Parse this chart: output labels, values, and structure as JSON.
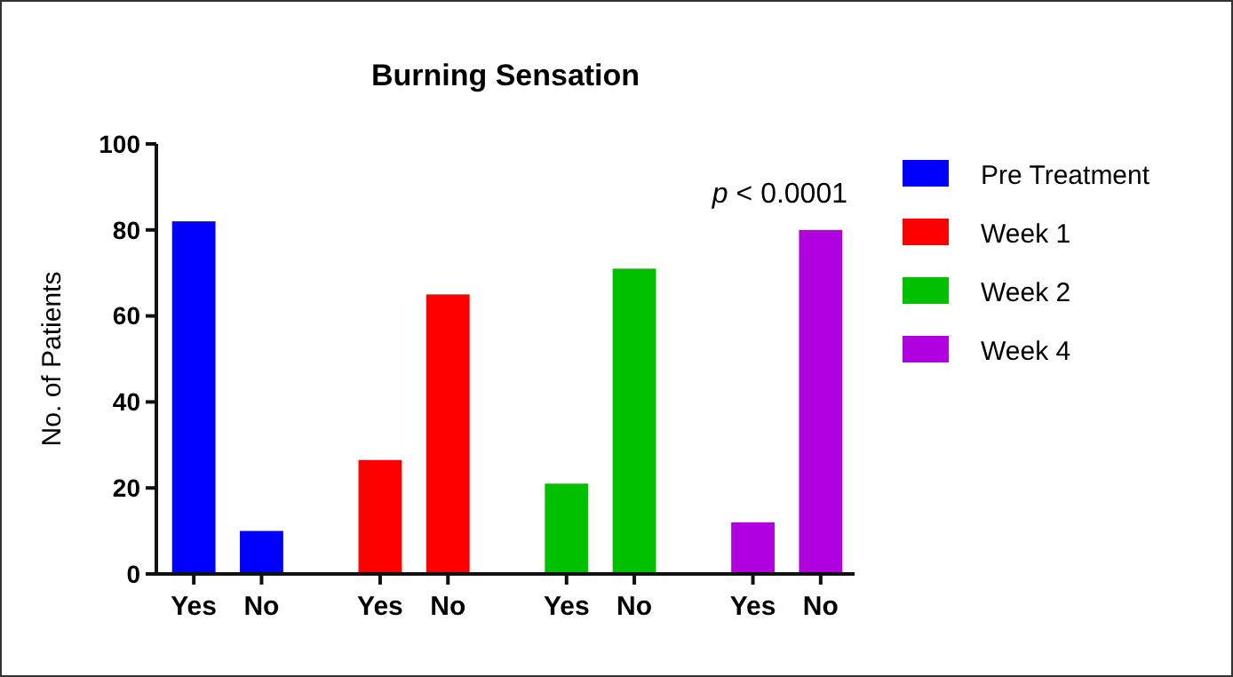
{
  "chart_data": {
    "type": "bar",
    "title": "Burning Sensation",
    "ylabel": "No. of Patients",
    "categories": [
      "Yes",
      "No",
      "Yes",
      "No",
      "Yes",
      "No",
      "Yes",
      "No"
    ],
    "series": [
      {
        "name": "Pre Treatment",
        "color": "#0000ff",
        "values": [
          82,
          10,
          null,
          null,
          null,
          null,
          null,
          null
        ]
      },
      {
        "name": "Week 1",
        "color": "#ff0000",
        "values": [
          null,
          null,
          26.5,
          65,
          null,
          null,
          null,
          null
        ]
      },
      {
        "name": "Week 2",
        "color": "#00c000",
        "values": [
          null,
          null,
          null,
          null,
          21,
          71,
          null,
          null
        ]
      },
      {
        "name": "Week 4",
        "color": "#b000e0",
        "values": [
          null,
          null,
          null,
          null,
          null,
          null,
          12,
          80
        ]
      }
    ],
    "ylim": [
      0,
      100
    ],
    "yticks": [
      0,
      20,
      40,
      60,
      80,
      100
    ],
    "grid": false,
    "legend": "right",
    "annotations": [
      "p < 0.0001"
    ]
  }
}
